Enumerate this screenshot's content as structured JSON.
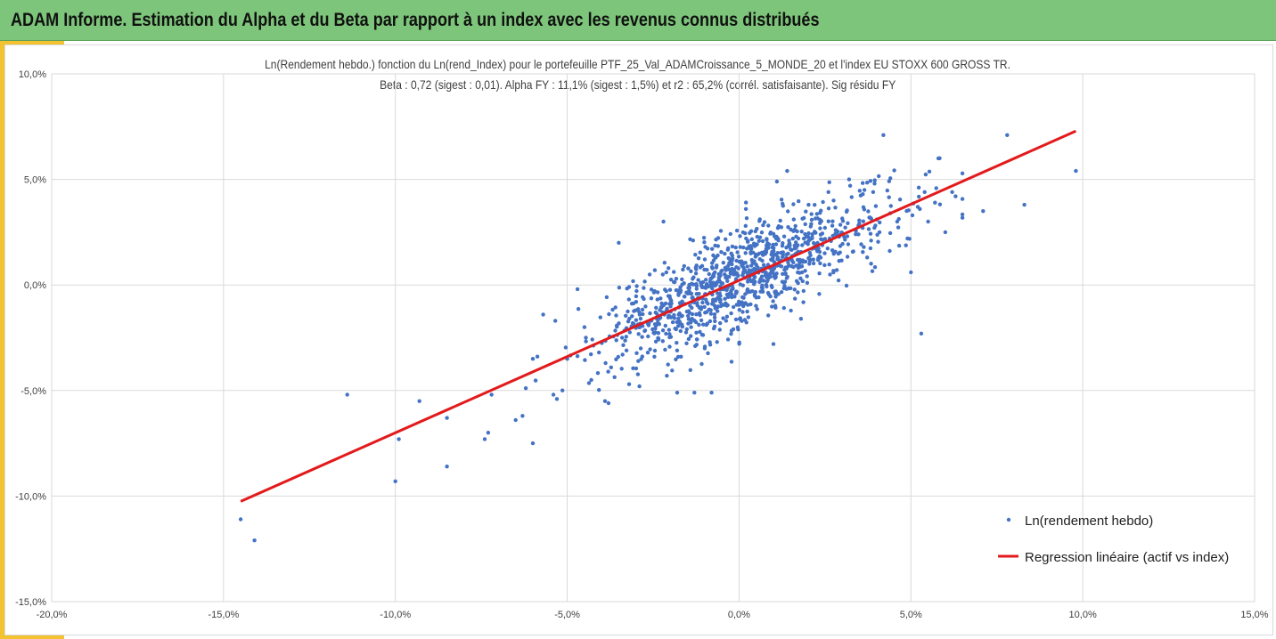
{
  "header": {
    "title": "ADAM Informe. Estimation du Alpha et du Beta par rapport à un index avec les revenus connus distribués"
  },
  "colors": {
    "header_bg": "#7dc57a",
    "accent": "#f2c230",
    "points": "#4472c4",
    "regression": "#e31a1c",
    "grid": "#d9d9d9"
  },
  "chart_data": {
    "type": "scatter",
    "title": "Ln(Rendement hebdo.) fonction du Ln(rend_Index) pour le portefeuille PTF_25_Val_ADAMCroissance_5_MONDE_20 et l'index EU STOXX 600 GROSS TR.",
    "subtitle": "Beta : 0,72 (sigest : 0,01).  Alpha FY : 11,1% (sigest : 1,5%) et r2 : 65,2% (corrél. satisfaisante). Sig résidu FY",
    "xlabel": "",
    "ylabel": "",
    "xlim": [
      -0.2,
      0.15
    ],
    "ylim": [
      -0.15,
      0.1
    ],
    "x_ticks": [
      -0.2,
      -0.15,
      -0.1,
      -0.05,
      0.0,
      0.05,
      0.1,
      0.15
    ],
    "x_tick_labels": [
      "-20,0%",
      "-15,0%",
      "-10,0%",
      "-5,0%",
      "0,0%",
      "5,0%",
      "10,0%",
      "15,0%"
    ],
    "y_ticks": [
      0.1,
      0.05,
      0.0,
      -0.05,
      -0.1,
      -0.15
    ],
    "y_tick_labels": [
      "10,0%",
      "5,0%",
      "0,0%",
      "-5,0%",
      "-10,0%",
      "-15,0%"
    ],
    "grid": true,
    "legend_position": "bottom-right",
    "series": [
      {
        "name": "Ln(rendement hebdo)",
        "type": "scatter",
        "points": [
          [
            -0.145,
            -0.111
          ],
          [
            -0.141,
            -0.121
          ],
          [
            -0.114,
            -0.052
          ],
          [
            -0.1,
            -0.093
          ],
          [
            -0.099,
            -0.073
          ],
          [
            -0.093,
            -0.055
          ],
          [
            -0.085,
            -0.086
          ],
          [
            -0.085,
            -0.063
          ],
          [
            -0.074,
            -0.073
          ],
          [
            -0.073,
            -0.07
          ],
          [
            -0.072,
            -0.052
          ],
          [
            -0.065,
            -0.064
          ],
          [
            -0.063,
            -0.062
          ],
          [
            -0.06,
            -0.075
          ],
          [
            -0.06,
            -0.035
          ],
          [
            -0.057,
            -0.014
          ],
          [
            -0.054,
            -0.052
          ],
          [
            -0.053,
            -0.054
          ],
          [
            -0.047,
            -0.002
          ],
          [
            -0.043,
            -0.045
          ],
          [
            -0.039,
            -0.055
          ],
          [
            -0.038,
            -0.056
          ],
          [
            -0.035,
            0.02
          ],
          [
            -0.032,
            -0.047
          ],
          [
            -0.029,
            -0.048
          ],
          [
            -0.022,
            0.03
          ],
          [
            -0.021,
            -0.043
          ],
          [
            -0.018,
            -0.051
          ],
          [
            -0.013,
            -0.051
          ],
          [
            -0.01,
            -0.03
          ],
          [
            -0.008,
            -0.051
          ],
          [
            0.002,
            0.036
          ],
          [
            0.01,
            -0.028
          ],
          [
            0.011,
            0.049
          ],
          [
            0.014,
            0.054
          ],
          [
            0.018,
            -0.016
          ],
          [
            0.026,
            0.044
          ],
          [
            0.032,
            0.05
          ],
          [
            0.036,
            0.043
          ],
          [
            0.039,
            0.044
          ],
          [
            0.042,
            0.071
          ],
          [
            0.044,
            0.034
          ],
          [
            0.046,
            0.03
          ],
          [
            0.049,
            0.022
          ],
          [
            0.052,
            0.037
          ],
          [
            0.05,
            0.006
          ],
          [
            0.053,
            -0.023
          ],
          [
            0.054,
            0.044
          ],
          [
            0.057,
            0.039
          ],
          [
            0.058,
            0.06
          ],
          [
            0.06,
            0.025
          ],
          [
            0.062,
            0.044
          ],
          [
            0.071,
            0.035
          ],
          [
            0.078,
            0.071
          ],
          [
            0.083,
            0.038
          ],
          [
            0.098,
            0.054
          ],
          [
            0.063,
            0.042
          ],
          [
            0.055,
            0.03
          ],
          [
            -0.05,
            -0.035
          ],
          [
            -0.045,
            -0.02
          ]
        ],
        "extra_cluster": {
          "count": 1090,
          "seed": 7,
          "x_mean": 0.001,
          "x_sd": 0.021,
          "slope": 0.72,
          "intercept": 0.0025,
          "resid_sd": 0.0115
        }
      },
      {
        "name": "Regression linéaire (actif vs index)",
        "type": "line",
        "points": [
          [
            -0.145,
            -0.1025
          ],
          [
            0.098,
            0.0729
          ]
        ]
      }
    ]
  }
}
